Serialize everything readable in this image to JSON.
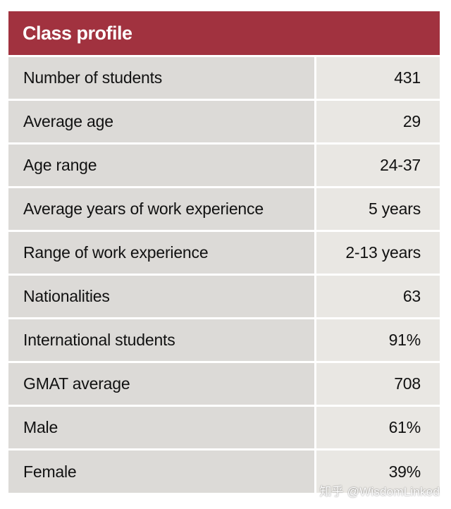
{
  "table": {
    "title": "Class profile",
    "rows": [
      {
        "label": "Number of students",
        "value": "431"
      },
      {
        "label": "Average age",
        "value": "29"
      },
      {
        "label": "Age range",
        "value": "24-37"
      },
      {
        "label": "Average years of work experience",
        "value": "5 years"
      },
      {
        "label": "Range of work experience",
        "value": "2-13 years"
      },
      {
        "label": "Nationalities",
        "value": "63"
      },
      {
        "label": "International students",
        "value": "91%"
      },
      {
        "label": "GMAT average",
        "value": "708"
      },
      {
        "label": "Male",
        "value": "61%"
      },
      {
        "label": "Female",
        "value": "39%"
      }
    ]
  },
  "watermark": "知乎 @WisdomLinked",
  "colors": {
    "header": "#a1323f",
    "label_cell": "#dcdad7",
    "value_cell": "#e9e7e3"
  }
}
